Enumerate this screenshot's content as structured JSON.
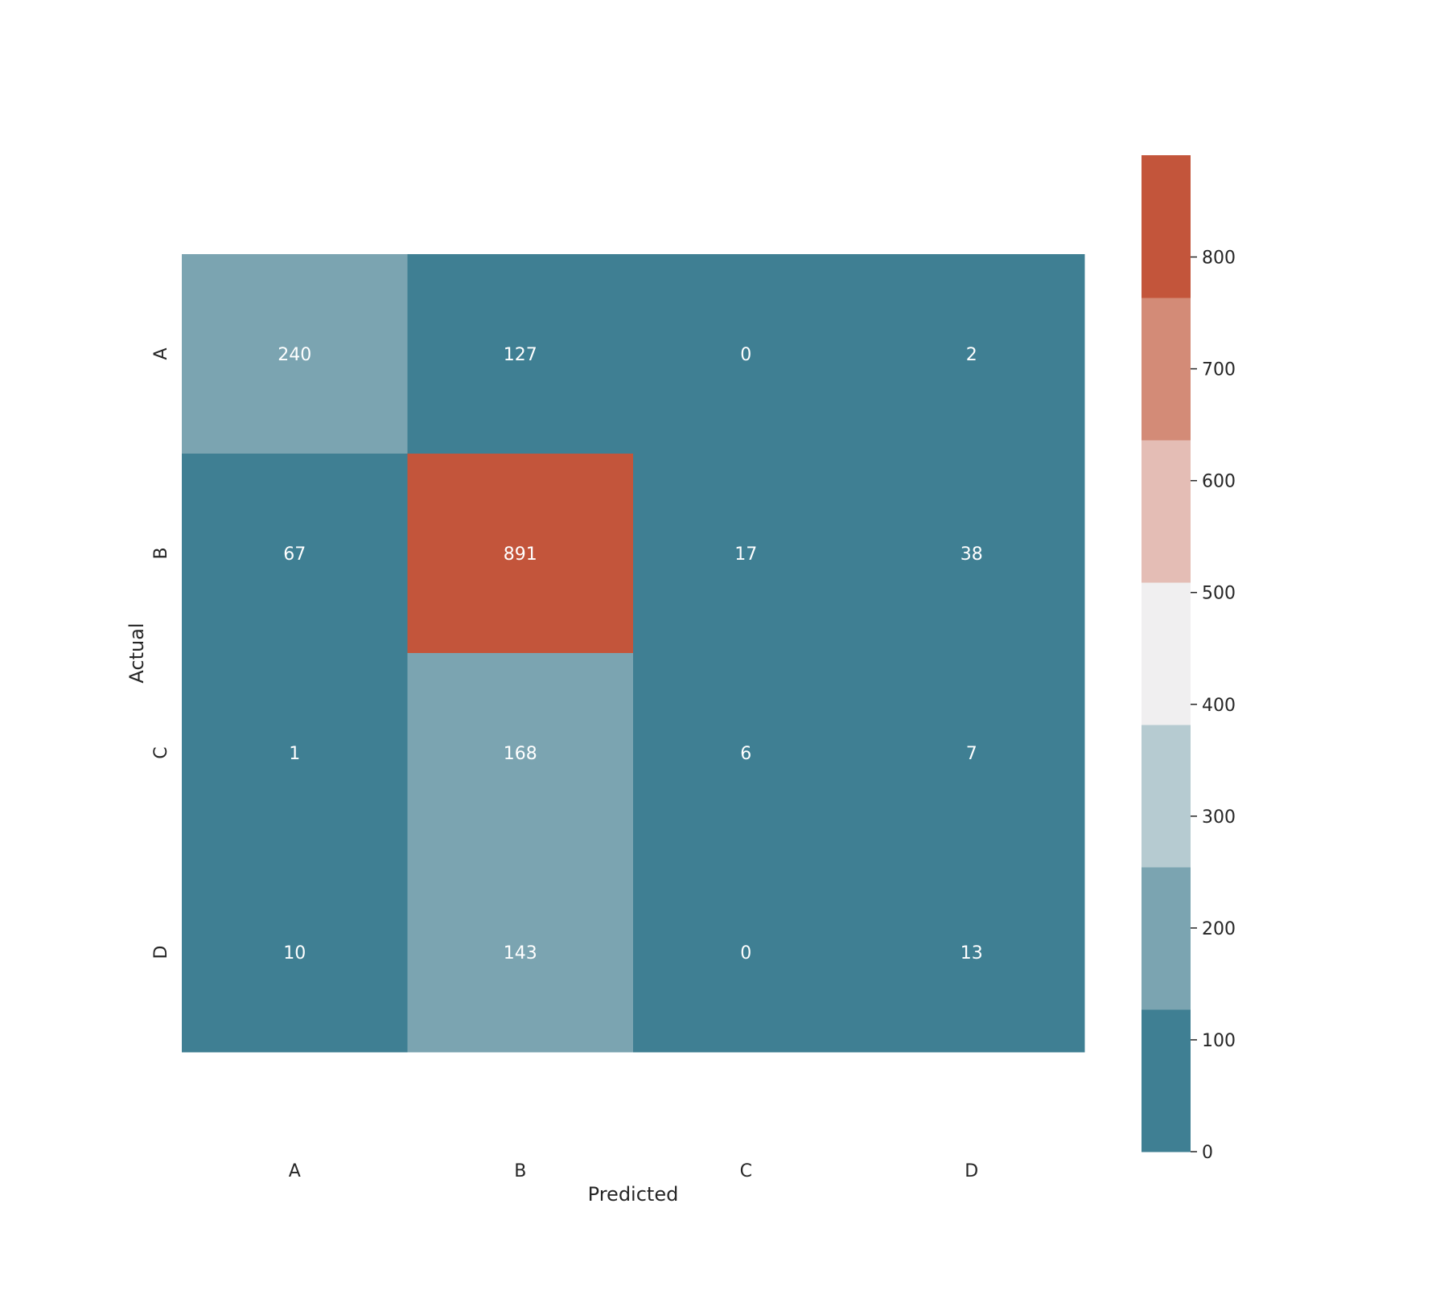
{
  "chart_data": {
    "type": "heatmap",
    "title": "",
    "xlabel": "Predicted",
    "ylabel": "Actual",
    "x_categories": [
      "A",
      "B",
      "C",
      "D"
    ],
    "y_categories": [
      "A",
      "B",
      "C",
      "D"
    ],
    "values": [
      [
        240,
        127,
        0,
        2
      ],
      [
        67,
        891,
        17,
        38
      ],
      [
        1,
        168,
        6,
        7
      ],
      [
        10,
        143,
        0,
        13
      ]
    ],
    "colorbar": {
      "vmin": 0,
      "vmax": 891,
      "ticks": [
        0,
        100,
        200,
        300,
        400,
        500,
        600,
        700,
        800
      ],
      "tick_labels": [
        "0",
        "100",
        "200",
        "300",
        "400",
        "500",
        "600",
        "700",
        "800"
      ],
      "colors": [
        "#3f7f93",
        "#7ba4b1",
        "#b6cbd1",
        "#f0eff0",
        "#e4bdb5",
        "#d38b77",
        "#c3553b"
      ],
      "placement": "right"
    },
    "colors": {
      "annotation_text": "#ffffff",
      "label_text": "#262626",
      "tick_mark": "#262626"
    }
  }
}
